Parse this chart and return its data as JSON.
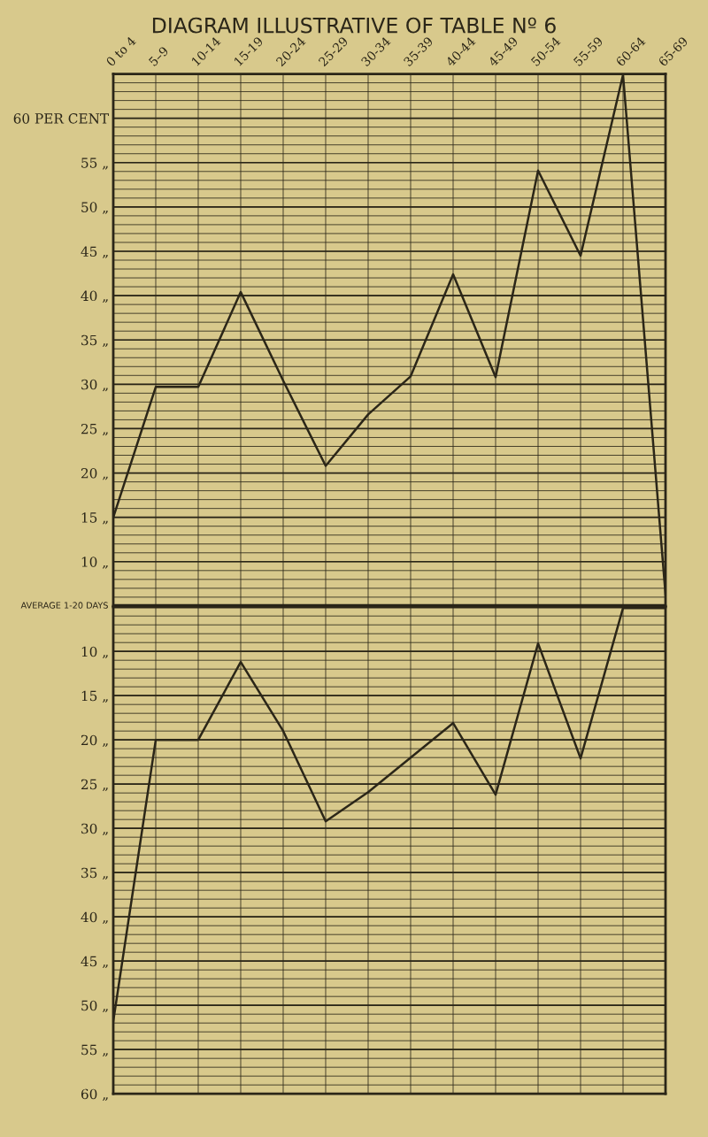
{
  "chart_data": [
    {
      "type": "line",
      "title": "DIAGRAM ILLUSTRATIVE OF TABLE Nº 6",
      "categories": [
        "0 to 4",
        "5–9",
        "10-14",
        "15-19",
        "20-24",
        "25-29",
        "30-34",
        "35-39",
        "40-44",
        "45-49",
        "50-54",
        "55-59",
        "60-64",
        "65-69"
      ],
      "series": [
        {
          "color": "#2b2618",
          "values": [
            15,
            29.7,
            29.7,
            40.4,
            30.4,
            20.8,
            26.6,
            30.9,
            42.4,
            30.8,
            54.1,
            44.5,
            64.9,
            6.3
          ]
        }
      ],
      "ylim": [
        5,
        65
      ],
      "yticks": [
        {
          "value": 5,
          "label": null
        },
        {
          "value": 6,
          "label": null
        },
        {
          "value": 7,
          "label": null
        },
        {
          "value": 8,
          "label": null
        },
        {
          "value": 9,
          "label": null
        },
        {
          "value": 10,
          "label": "10 „"
        },
        {
          "value": 11,
          "label": null
        },
        {
          "value": 12,
          "label": null
        },
        {
          "value": 13,
          "label": null
        },
        {
          "value": 14,
          "label": null
        },
        {
          "value": 15,
          "label": "15 „"
        },
        {
          "value": 16,
          "label": null
        },
        {
          "value": 17,
          "label": null
        },
        {
          "value": 18,
          "label": null
        },
        {
          "value": 19,
          "label": null
        },
        {
          "value": 20,
          "label": "20 „"
        },
        {
          "value": 21,
          "label": null
        },
        {
          "value": 22,
          "label": null
        },
        {
          "value": 23,
          "label": null
        },
        {
          "value": 24,
          "label": null
        },
        {
          "value": 25,
          "label": "25 „"
        },
        {
          "value": 26,
          "label": null
        },
        {
          "value": 27,
          "label": null
        },
        {
          "value": 28,
          "label": null
        },
        {
          "value": 29,
          "label": null
        },
        {
          "value": 30,
          "label": "30 „"
        },
        {
          "value": 31,
          "label": null
        },
        {
          "value": 32,
          "label": null
        },
        {
          "value": 33,
          "label": null
        },
        {
          "value": 34,
          "label": null
        },
        {
          "value": 35,
          "label": "35 „"
        },
        {
          "value": 36,
          "label": null
        },
        {
          "value": 37,
          "label": null
        },
        {
          "value": 38,
          "label": null
        },
        {
          "value": 39,
          "label": null
        },
        {
          "value": 40,
          "label": "40 „"
        },
        {
          "value": 41,
          "label": null
        },
        {
          "value": 42,
          "label": null
        },
        {
          "value": 43,
          "label": null
        },
        {
          "value": 44,
          "label": null
        },
        {
          "value": 45,
          "label": "45 „"
        },
        {
          "value": 46,
          "label": null
        },
        {
          "value": 47,
          "label": null
        },
        {
          "value": 48,
          "label": null
        },
        {
          "value": 49,
          "label": null
        },
        {
          "value": 50,
          "label": "50 „"
        },
        {
          "value": 51,
          "label": null
        },
        {
          "value": 52,
          "label": null
        },
        {
          "value": 53,
          "label": null
        },
        {
          "value": 54,
          "label": null
        },
        {
          "value": 55,
          "label": "55 „"
        },
        {
          "value": 56,
          "label": null
        },
        {
          "value": 57,
          "label": null
        },
        {
          "value": 58,
          "label": null
        },
        {
          "value": 59,
          "label": null
        },
        {
          "value": 60,
          "label": "60 PER CENT"
        },
        {
          "value": 61,
          "label": null
        },
        {
          "value": 62,
          "label": null
        },
        {
          "value": 63,
          "label": null
        },
        {
          "value": 64,
          "label": null
        },
        {
          "value": 65,
          "label": null
        }
      ],
      "ref_lines": [
        {
          "axis": "y",
          "value": 5,
          "label": "AVERAGE 1-20 DAYS",
          "color": "#1e1a10"
        }
      ],
      "grid": true,
      "marker": "none",
      "line_style": "solid",
      "legend": false
    },
    {
      "type": "line",
      "categories": [
        null,
        null,
        null,
        null,
        null,
        null,
        null,
        null,
        null,
        null,
        null,
        null,
        null,
        null
      ],
      "series": [
        {
          "color": "#2b2618",
          "values": [
            51.8,
            20,
            20,
            11.2,
            19,
            29.2,
            25.9,
            22,
            18.1,
            26.2,
            9.1,
            22.1,
            5.1,
            5.1
          ]
        }
      ],
      "ylim": [
        60,
        5
      ],
      "yticks": [
        {
          "value": 5,
          "label": null
        },
        {
          "value": 6,
          "label": null
        },
        {
          "value": 7,
          "label": null
        },
        {
          "value": 8,
          "label": null
        },
        {
          "value": 9,
          "label": null
        },
        {
          "value": 10,
          "label": "10 „"
        },
        {
          "value": 11,
          "label": null
        },
        {
          "value": 12,
          "label": null
        },
        {
          "value": 13,
          "label": null
        },
        {
          "value": 14,
          "label": null
        },
        {
          "value": 15,
          "label": "15 „"
        },
        {
          "value": 16,
          "label": null
        },
        {
          "value": 17,
          "label": null
        },
        {
          "value": 18,
          "label": null
        },
        {
          "value": 19,
          "label": null
        },
        {
          "value": 20,
          "label": "20 „"
        },
        {
          "value": 21,
          "label": null
        },
        {
          "value": 22,
          "label": null
        },
        {
          "value": 23,
          "label": null
        },
        {
          "value": 24,
          "label": null
        },
        {
          "value": 25,
          "label": "25 „"
        },
        {
          "value": 26,
          "label": null
        },
        {
          "value": 27,
          "label": null
        },
        {
          "value": 28,
          "label": null
        },
        {
          "value": 29,
          "label": null
        },
        {
          "value": 30,
          "label": "30 „"
        },
        {
          "value": 31,
          "label": null
        },
        {
          "value": 32,
          "label": null
        },
        {
          "value": 33,
          "label": null
        },
        {
          "value": 34,
          "label": null
        },
        {
          "value": 35,
          "label": "35 „"
        },
        {
          "value": 36,
          "label": null
        },
        {
          "value": 37,
          "label": null
        },
        {
          "value": 38,
          "label": null
        },
        {
          "value": 39,
          "label": null
        },
        {
          "value": 40,
          "label": "40 „"
        },
        {
          "value": 41,
          "label": null
        },
        {
          "value": 42,
          "label": null
        },
        {
          "value": 43,
          "label": null
        },
        {
          "value": 44,
          "label": null
        },
        {
          "value": 45,
          "label": "45 „"
        },
        {
          "value": 46,
          "label": null
        },
        {
          "value": 47,
          "label": null
        },
        {
          "value": 48,
          "label": null
        },
        {
          "value": 49,
          "label": null
        },
        {
          "value": 50,
          "label": "50 „"
        },
        {
          "value": 51,
          "label": null
        },
        {
          "value": 52,
          "label": null
        },
        {
          "value": 53,
          "label": null
        },
        {
          "value": 54,
          "label": null
        },
        {
          "value": 55,
          "label": "55 „"
        },
        {
          "value": 56,
          "label": null
        },
        {
          "value": 57,
          "label": null
        },
        {
          "value": 58,
          "label": null
        },
        {
          "value": 59,
          "label": null
        },
        {
          "value": 60,
          "label": "60 „"
        }
      ],
      "tick_labels": "y",
      "grid": true,
      "marker": "none",
      "line_style": "solid",
      "legend": false
    }
  ]
}
